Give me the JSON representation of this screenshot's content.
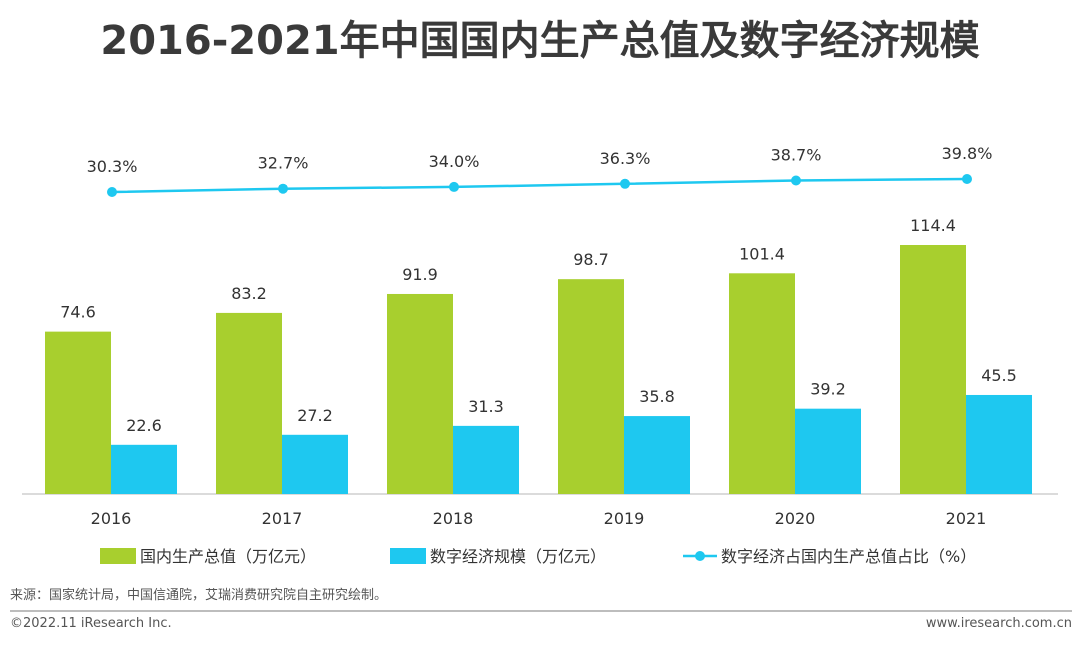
{
  "title": "2016-2021年中国国内生产总值及数字经济规模",
  "chart_data": {
    "type": "bar",
    "categories": [
      "2016",
      "2017",
      "2018",
      "2019",
      "2020",
      "2021"
    ],
    "series": [
      {
        "name": "国内生产总值（万亿元）",
        "type": "bar",
        "color": "#a8cf2e",
        "values": [
          74.6,
          83.2,
          91.9,
          98.7,
          101.4,
          114.4
        ],
        "labels": [
          "74.6",
          "83.2",
          "91.9",
          "98.7",
          "101.4",
          "114.4"
        ]
      },
      {
        "name": "数字经济规模（万亿元）",
        "type": "bar",
        "color": "#1ec8f0",
        "values": [
          22.6,
          27.2,
          31.3,
          35.8,
          39.2,
          45.5
        ],
        "labels": [
          "22.6",
          "27.2",
          "31.3",
          "35.8",
          "39.2",
          "45.5"
        ]
      },
      {
        "name": "数字经济占国内生产总值占比（%）",
        "type": "line",
        "color": "#1ec8f0",
        "values": [
          30.3,
          32.7,
          34.0,
          36.3,
          38.7,
          39.8
        ],
        "labels": [
          "30.3%",
          "32.7%",
          "34.0%",
          "36.3%",
          "38.7%",
          "39.8%"
        ]
      }
    ],
    "ylim": [
      0,
      114.4
    ],
    "legend": "bottom",
    "grid": false
  },
  "footer": {
    "source": "来源：国家统计局，中国信通院，艾瑞消费研究院自主研究绘制。",
    "copyright": "©2022.11 iResearch Inc.",
    "website": "www.iresearch.com.cn"
  }
}
